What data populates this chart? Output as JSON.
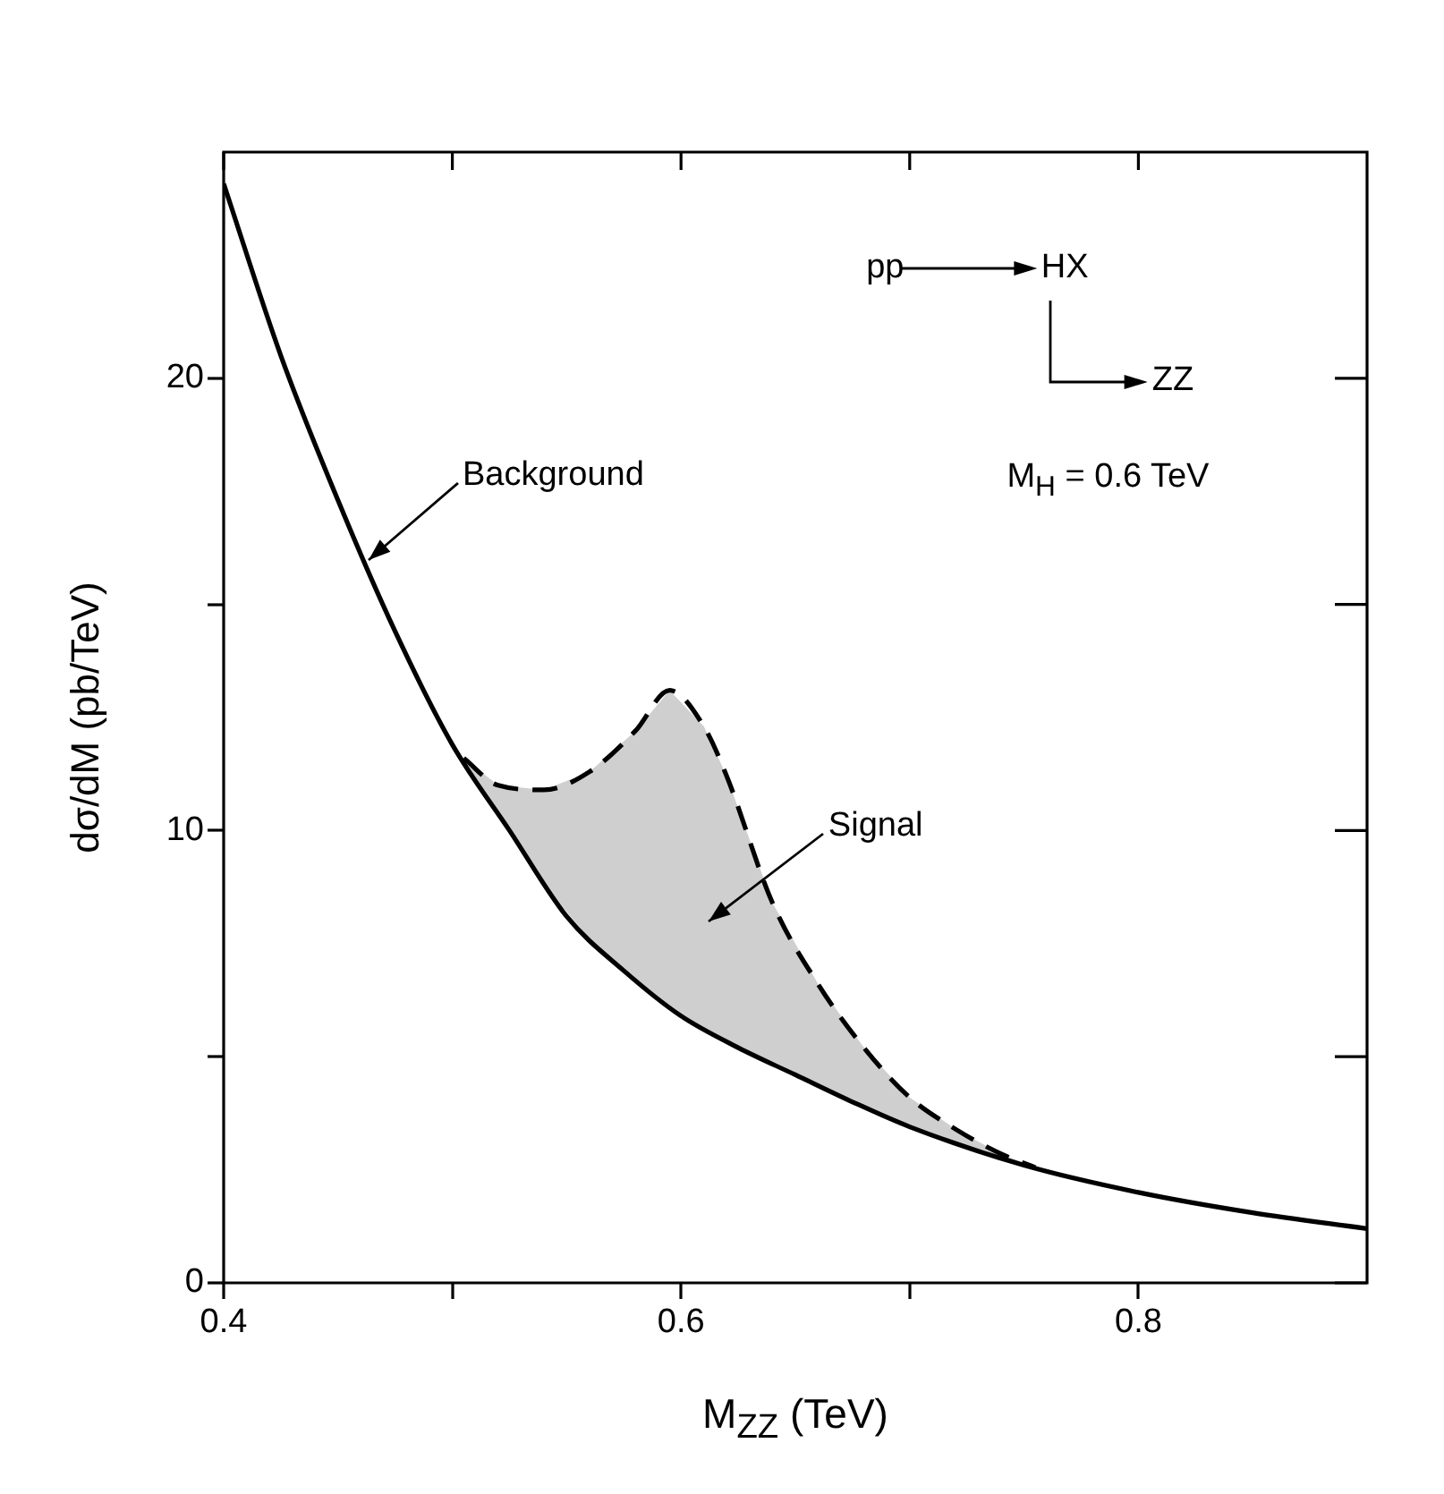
{
  "chart_data": {
    "type": "line",
    "xlabel": "M$_{ZZ}$ (TeV)",
    "ylabel": "dσ/dM (pb/TeV)",
    "xlim": [
      0.4,
      0.9
    ],
    "xticks": [
      0.4,
      {
        "value": 0.5,
        "label": null
      },
      0.6,
      {
        "value": 0.7,
        "label": null
      },
      0.8
    ],
    "ylim": [
      0,
      25
    ],
    "yticks": [
      0,
      {
        "value": 5,
        "label": null
      },
      10,
      {
        "value": 15,
        "label": null
      },
      20
    ],
    "grid": false,
    "legend": false,
    "marker": "none",
    "series": [
      {
        "color": "#000000",
        "line_style": "solid",
        "x": [
          0.4,
          0.425,
          0.45,
          0.475,
          0.5,
          0.525,
          0.55,
          0.575,
          0.6,
          0.625,
          0.65,
          0.675,
          0.7,
          0.75,
          0.8,
          0.85,
          0.9
        ],
        "values": [
          24.3,
          20.5,
          17.3,
          14.4,
          11.9,
          10.0,
          8.1,
          6.9,
          5.9,
          5.2,
          4.6,
          4.0,
          3.45,
          2.6,
          2.0,
          1.55,
          1.2
        ]
      },
      {
        "color": "#000000",
        "line_style": "dashed",
        "x": [
          0.505,
          0.52,
          0.54,
          0.56,
          0.58,
          0.595,
          0.61,
          0.62,
          0.64,
          0.66,
          0.68,
          0.7,
          0.72,
          0.74,
          0.755
        ],
        "values": [
          11.6,
          11.0,
          10.9,
          11.3,
          12.2,
          13.1,
          12.3,
          11.2,
          8.4,
          6.6,
          5.2,
          4.1,
          3.4,
          2.85,
          2.55
        ],
        "upper": [
          11.6,
          11.0,
          10.9,
          11.3,
          12.2,
          13.1,
          12.3,
          11.2,
          8.4,
          6.6,
          5.2,
          4.1,
          3.4,
          2.85,
          2.55
        ],
        "lower": [
          11.6,
          10.3,
          8.8,
          7.6,
          6.7,
          6.1,
          5.6,
          5.3,
          4.9,
          4.4,
          3.9,
          3.45,
          3.1,
          2.8,
          2.55
        ]
      }
    ],
    "annotations": [
      {
        "text": "Background",
        "x": 0.463,
        "y": 16.0
      },
      {
        "text": "Signal",
        "x": 0.612,
        "y": 8.0
      },
      "pp",
      "HX",
      "ZZ",
      "M$_{H}$ = 0.6 TeV"
    ]
  }
}
